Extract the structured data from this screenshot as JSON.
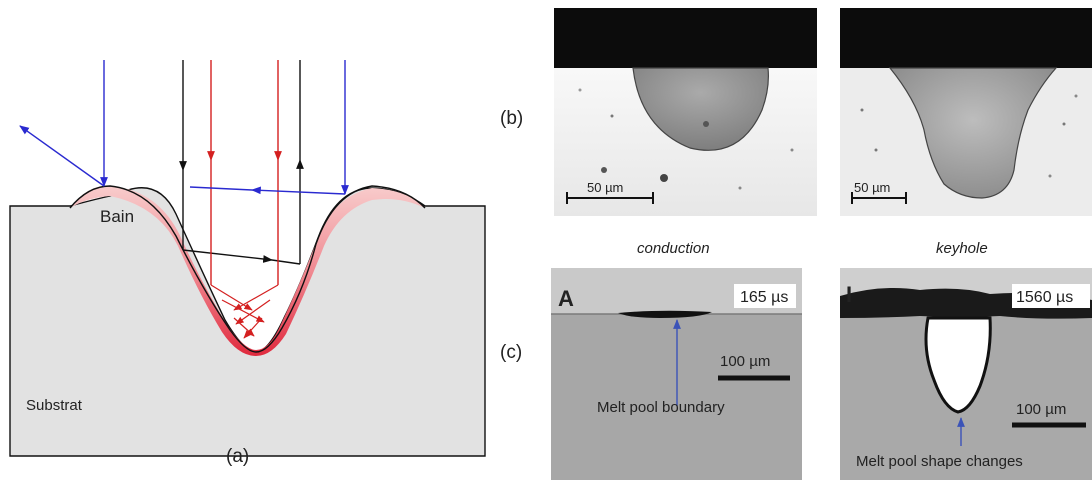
{
  "panel_a": {
    "caption": "(a)",
    "bain_label": "Bain",
    "substrat_label": "Substrat"
  },
  "panel_b": {
    "caption": "(b)",
    "left": {
      "scale_label": "50 µm",
      "mode_label": "conduction"
    },
    "right": {
      "scale_label": "50 µm",
      "mode_label": "keyhole"
    }
  },
  "panel_c": {
    "caption": "(c)",
    "left": {
      "frame_letter": "A",
      "time_label": "165 µs",
      "scale_label": "100 µm",
      "annotation": "Melt pool boundary"
    },
    "right": {
      "frame_letter": "I",
      "time_label": "1560 µs",
      "scale_label": "100 µm",
      "annotation": "Melt pool shape changes"
    }
  },
  "colors": {
    "black_ray": "#111111",
    "red_ray": "#d42020",
    "blue_ray": "#2a2ad0",
    "annotation_blue": "#3b53b8",
    "substrate": "#e2e2e2",
    "melt_light": "#f6c4c4",
    "melt_dark": "#e23a4a"
  }
}
